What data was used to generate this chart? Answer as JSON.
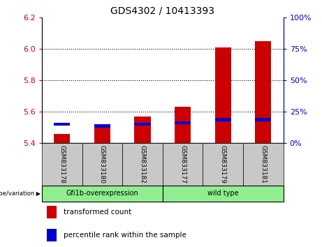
{
  "title": "GDS4302 / 10413393",
  "samples": [
    "GSM833178",
    "GSM833180",
    "GSM833182",
    "GSM833177",
    "GSM833179",
    "GSM833181"
  ],
  "red_values": [
    5.46,
    5.5,
    5.57,
    5.63,
    6.01,
    6.05
  ],
  "blue_values": [
    5.52,
    5.51,
    5.52,
    5.53,
    5.55,
    5.55
  ],
  "y_min": 5.4,
  "y_max": 6.2,
  "y_ticks_left": [
    5.4,
    5.6,
    5.8,
    6.0,
    6.2
  ],
  "y_ticks_right": [
    0,
    25,
    50,
    75,
    100
  ],
  "left_tick_color": "#cc0000",
  "right_tick_color": "#0000cc",
  "bar_width": 0.4,
  "bar_red_color": "#cc0000",
  "bar_blue_color": "#0000cc",
  "legend_red": "transformed count",
  "legend_blue": "percentile rank within the sample",
  "group_label": "genotype/variation",
  "group_bg_gray": "#c8c8c8",
  "group_bg_green": "#90EE90",
  "group1_name": "Gfi1b-overexpression",
  "group2_name": "wild type",
  "grid_lines": [
    5.6,
    5.8,
    6.0
  ],
  "blue_bar_height": 0.02
}
